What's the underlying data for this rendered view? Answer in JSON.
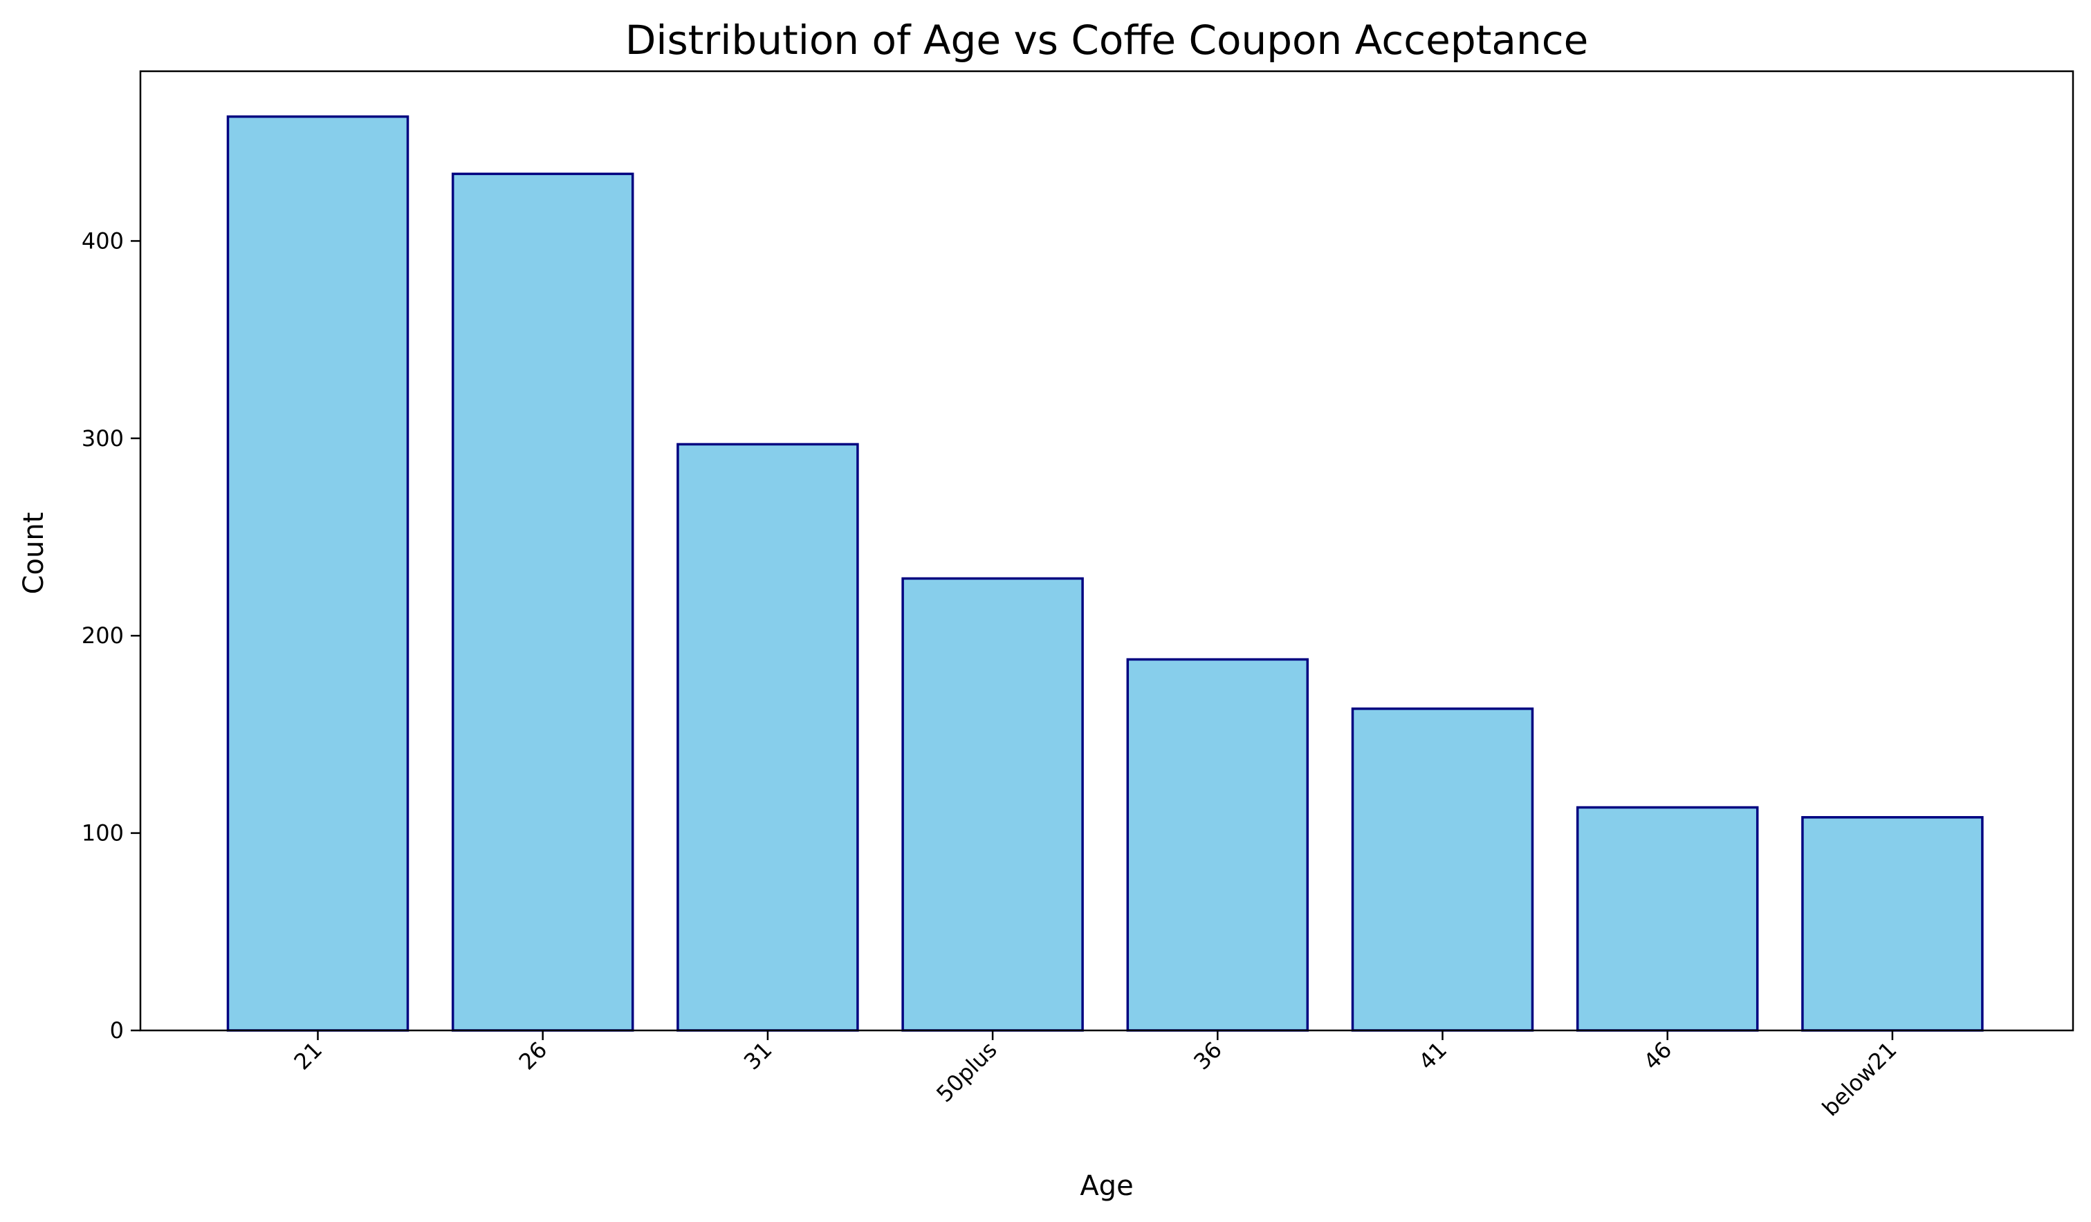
{
  "chart_data": {
    "type": "bar",
    "title": "Distribution of Age vs Coffe Coupon Acceptance",
    "xlabel": "Age",
    "ylabel": "Count",
    "categories": [
      "21",
      "26",
      "31",
      "50plus",
      "36",
      "41",
      "46",
      "below21"
    ],
    "values": [
      463,
      434,
      297,
      229,
      188,
      163,
      113,
      108
    ],
    "ylim": [
      0,
      486
    ],
    "yticks": [
      0,
      100,
      200,
      300,
      400
    ],
    "grid": false,
    "legend": "none",
    "colors": {
      "bar_fill": "#87CEEB",
      "bar_edge": "#000080",
      "axis": "#000000",
      "background": "#ffffff"
    }
  }
}
